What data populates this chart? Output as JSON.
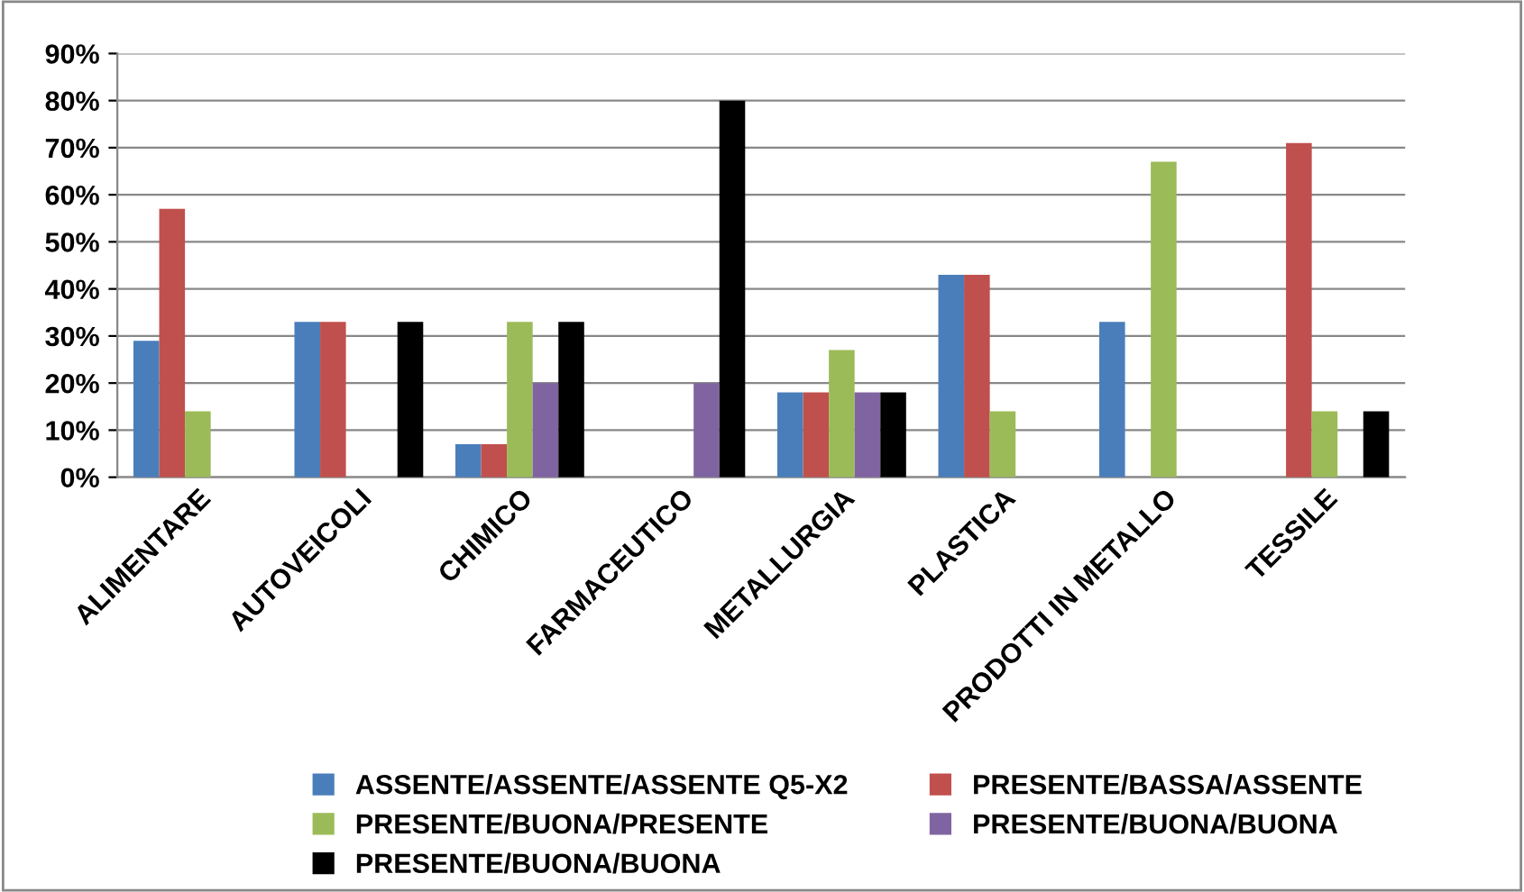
{
  "chart_data": {
    "type": "bar",
    "categories": [
      "ALIMENTARE",
      "AUTOVEICOLI",
      "CHIMICO",
      "FARMACEUTICO",
      "METALLURGIA",
      "PLASTICA",
      "PRODOTTI IN METALLO",
      "TESSILE"
    ],
    "series": [
      {
        "name": "ASSENTE/ASSENTE/ASSENTE Q5-X2",
        "color": "#4a7ebb",
        "values": [
          29,
          33,
          7,
          null,
          18,
          43,
          33,
          null
        ]
      },
      {
        "name": "PRESENTE/BASSA/ASSENTE",
        "color": "#c0504d",
        "values": [
          57,
          33,
          7,
          null,
          18,
          43,
          null,
          71
        ]
      },
      {
        "name": "PRESENTE/BUONA/PRESENTE",
        "color": "#9bbb59",
        "values": [
          14,
          null,
          33,
          null,
          27,
          14,
          67,
          14
        ]
      },
      {
        "name": "PRESENTE/BUONA/BUONA",
        "color": "#8064a2",
        "values": [
          null,
          null,
          20,
          20,
          18,
          null,
          null,
          null
        ]
      },
      {
        "name": "PRESENTE/BUONA/BUONA",
        "color": "#000000",
        "values": [
          null,
          33,
          33,
          80,
          18,
          null,
          null,
          14
        ]
      }
    ],
    "ylim": [
      0,
      90
    ],
    "yticks": [
      {
        "value": 0,
        "label": "0%"
      },
      {
        "value": 10,
        "label": "10%"
      },
      {
        "value": 20,
        "label": "20%"
      },
      {
        "value": 30,
        "label": "30%"
      },
      {
        "value": 40,
        "label": "40%"
      },
      {
        "value": 50,
        "label": "50%"
      },
      {
        "value": 60,
        "label": "60%"
      },
      {
        "value": 70,
        "label": "70%"
      },
      {
        "value": 80,
        "label": "80%"
      },
      {
        "value": 90,
        "label": "90%"
      }
    ],
    "grid": "y",
    "legend": "bottom"
  }
}
